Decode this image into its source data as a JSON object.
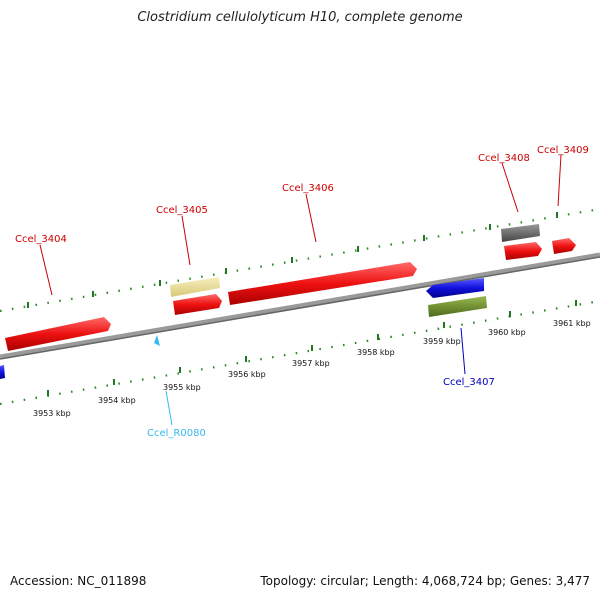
{
  "title": "Clostridium cellulolyticum H10, complete genome",
  "footer": {
    "accession": "Accession: NC_011898",
    "summary": "Topology: circular; Length: 4,068,724 bp; Genes: 3,477"
  },
  "colors": {
    "gene_forward": "#ee1111",
    "gene_reverse": "#1111dd",
    "rna": "#33bbee",
    "tick": "#227722",
    "backbone": "#888888",
    "cds_pale": "#eee39a",
    "cds_olive": "#6b8c2a",
    "cds_gray": "#6a6a6a"
  },
  "scale_labels": [
    "3953 kbp",
    "3954 kbp",
    "3955 kbp",
    "3956 kbp",
    "3957 kbp",
    "3958 kbp",
    "3959 kbp",
    "3960 kbp",
    "3961 kbp"
  ],
  "features": [
    {
      "id": "Ccel_3404",
      "label": "Ccel_3404",
      "type": "gene",
      "strand": "+",
      "color": "#ee1111"
    },
    {
      "id": "Ccel_3405",
      "label": "Ccel_3405",
      "type": "gene",
      "strand": "+",
      "color": "#ee1111"
    },
    {
      "id": "Ccel_3406",
      "label": "Ccel_3406",
      "type": "gene",
      "strand": "+",
      "color": "#ee1111"
    },
    {
      "id": "Ccel_3407",
      "label": "Ccel_3407",
      "type": "gene",
      "strand": "-",
      "color": "#1111dd"
    },
    {
      "id": "Ccel_3408",
      "label": "Ccel_3408",
      "type": "gene",
      "strand": "+",
      "color": "#ee1111"
    },
    {
      "id": "Ccel_3409",
      "label": "Ccel_3409",
      "type": "gene",
      "strand": "+",
      "color": "#ee1111"
    },
    {
      "id": "Ccel_R0080",
      "label": "Ccel_R0080",
      "type": "rna",
      "strand": "-",
      "color": "#33bbee"
    }
  ]
}
